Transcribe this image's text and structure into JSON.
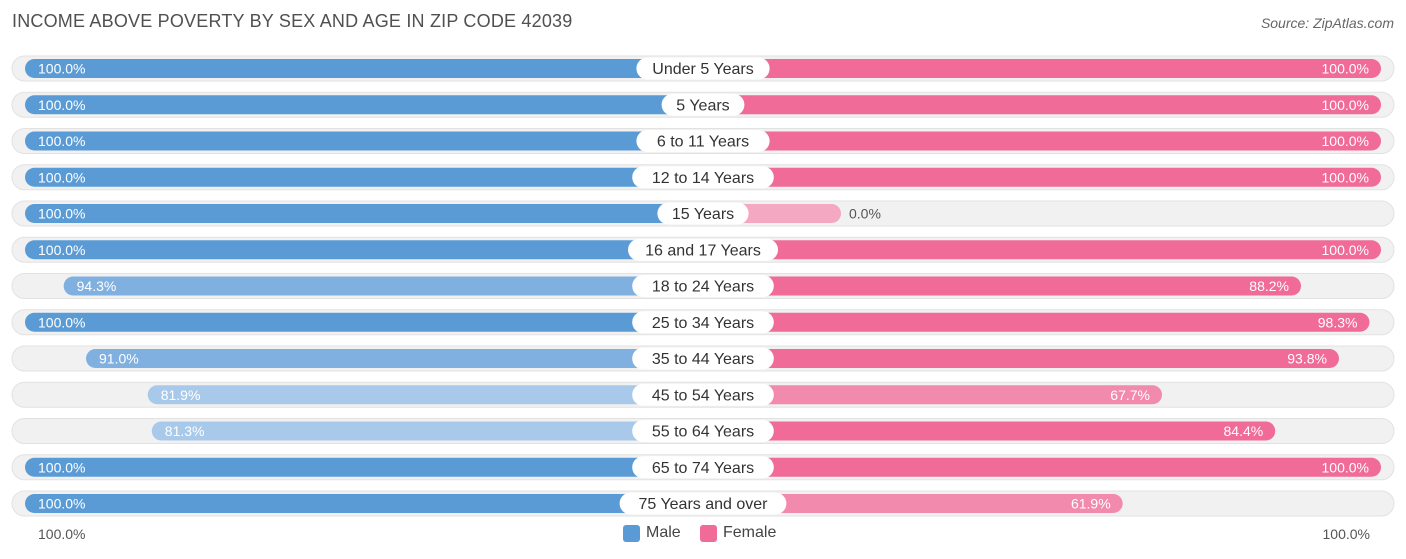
{
  "title": "INCOME ABOVE POVERTY BY SEX AND AGE IN ZIP CODE 42039",
  "source": "Source: ZipAtlas.com",
  "colors": {
    "male_full": "#5b9bd5",
    "male_light": "#a9c9ea",
    "female_full": "#f06b97",
    "female_light": "#f5a8c2",
    "row_bg": "#f2f2f2"
  },
  "legend": {
    "male": "Male",
    "female": "Female"
  },
  "axis": {
    "left_label": "100.0%",
    "right_label": "100.0%"
  },
  "chart_data": {
    "type": "bar",
    "orientation": "horizontal-diverging",
    "title": "INCOME ABOVE POVERTY BY SEX AND AGE IN ZIP CODE 42039",
    "categories": [
      "Under 5 Years",
      "5 Years",
      "6 to 11 Years",
      "12 to 14 Years",
      "15 Years",
      "16 and 17 Years",
      "18 to 24 Years",
      "25 to 34 Years",
      "35 to 44 Years",
      "45 to 54 Years",
      "55 to 64 Years",
      "65 to 74 Years",
      "75 Years and over"
    ],
    "series": [
      {
        "name": "Male",
        "values": [
          100.0,
          100.0,
          100.0,
          100.0,
          100.0,
          100.0,
          94.3,
          100.0,
          91.0,
          81.9,
          81.3,
          100.0,
          100.0
        ],
        "labels": [
          "100.0%",
          "100.0%",
          "100.0%",
          "100.0%",
          "100.0%",
          "100.0%",
          "94.3%",
          "100.0%",
          "91.0%",
          "81.9%",
          "81.3%",
          "100.0%",
          "100.0%"
        ]
      },
      {
        "name": "Female",
        "values": [
          100.0,
          100.0,
          100.0,
          100.0,
          0.0,
          100.0,
          88.2,
          98.3,
          93.8,
          67.7,
          84.4,
          100.0,
          61.9
        ],
        "labels": [
          "100.0%",
          "100.0%",
          "100.0%",
          "100.0%",
          "0.0%",
          "100.0%",
          "88.2%",
          "98.3%",
          "93.8%",
          "67.7%",
          "84.4%",
          "100.0%",
          "61.9%"
        ]
      }
    ],
    "xlim": [
      0,
      100
    ],
    "legend_position": "bottom-center"
  }
}
